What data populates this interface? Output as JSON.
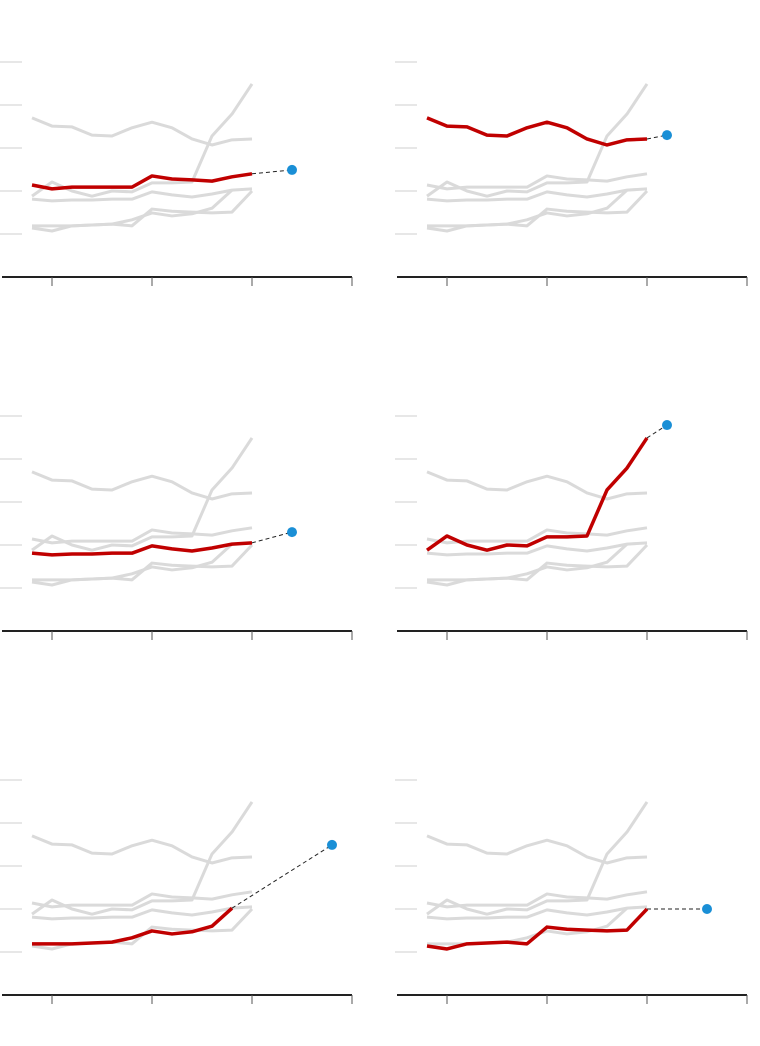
{
  "chart_data": [
    {
      "type": "line",
      "x": [
        0,
        1,
        2,
        3,
        4,
        5,
        6,
        7,
        8,
        9,
        10,
        11
      ],
      "xlim": [
        -1.5,
        16
      ],
      "xticks": [
        1,
        6,
        11,
        16
      ],
      "ylim": [
        0,
        5.5
      ],
      "yticks": [
        1,
        2,
        3,
        4,
        5
      ],
      "series": [
        {
          "color": "#dadada",
          "values": [
            3.7,
            3.51,
            3.49,
            3.3,
            3.28,
            3.47,
            3.6,
            3.47,
            3.21,
            3.07,
            3.19,
            3.21
          ]
        },
        {
          "color": "#dadada",
          "values": [
            1.81,
            1.77,
            1.79,
            1.79,
            1.81,
            1.81,
            1.98,
            1.91,
            1.86,
            1.93,
            2.02,
            2.05
          ]
        },
        {
          "color": "#dadada",
          "values": [
            1.88,
            2.21,
            2.0,
            1.88,
            2.0,
            1.98,
            2.19,
            2.19,
            2.21,
            3.28,
            3.79,
            4.49
          ]
        },
        {
          "color": "#dadada",
          "values": [
            1.19,
            1.19,
            1.19,
            1.21,
            1.23,
            1.33,
            1.49,
            1.42,
            1.47,
            1.6,
            2.02,
            null
          ]
        },
        {
          "color": "#dadada",
          "values": [
            1.14,
            1.07,
            1.19,
            1.21,
            1.23,
            1.19,
            1.58,
            1.53,
            1.51,
            1.49,
            1.51,
            2.0
          ]
        },
        {
          "color": "#c00000",
          "values": [
            2.14,
            2.05,
            2.09,
            2.09,
            2.09,
            2.09,
            2.35,
            2.28,
            2.26,
            2.23,
            2.33,
            2.4
          ]
        }
      ],
      "projection": {
        "x": 13,
        "value": 2.49,
        "color": "#1a8fd6"
      }
    },
    {
      "type": "line",
      "x": [
        0,
        1,
        2,
        3,
        4,
        5,
        6,
        7,
        8,
        9,
        10,
        11
      ],
      "xlim": [
        -1.5,
        16
      ],
      "xticks": [
        1,
        6,
        11,
        16
      ],
      "ylim": [
        0,
        5.5
      ],
      "yticks": [
        1,
        2,
        3,
        4,
        5
      ],
      "series": [
        {
          "color": "#dadada",
          "values": [
            2.14,
            2.05,
            2.09,
            2.09,
            2.09,
            2.09,
            2.35,
            2.28,
            2.26,
            2.23,
            2.33,
            2.4
          ]
        },
        {
          "color": "#dadada",
          "values": [
            1.81,
            1.77,
            1.79,
            1.79,
            1.81,
            1.81,
            1.98,
            1.91,
            1.86,
            1.93,
            2.02,
            2.05
          ]
        },
        {
          "color": "#dadada",
          "values": [
            1.88,
            2.21,
            2.0,
            1.88,
            2.0,
            1.98,
            2.19,
            2.19,
            2.21,
            3.28,
            3.79,
            4.49
          ]
        },
        {
          "color": "#dadada",
          "values": [
            1.19,
            1.19,
            1.19,
            1.21,
            1.23,
            1.33,
            1.49,
            1.42,
            1.47,
            1.6,
            2.02,
            null
          ]
        },
        {
          "color": "#dadada",
          "values": [
            1.14,
            1.07,
            1.19,
            1.21,
            1.23,
            1.19,
            1.58,
            1.53,
            1.51,
            1.49,
            1.51,
            2.0
          ]
        },
        {
          "color": "#c00000",
          "values": [
            3.7,
            3.51,
            3.49,
            3.3,
            3.28,
            3.47,
            3.6,
            3.47,
            3.21,
            3.07,
            3.19,
            3.21
          ]
        }
      ],
      "projection": {
        "x": 12,
        "value": 3.3,
        "color": "#1a8fd6"
      }
    },
    {
      "type": "line",
      "x": [
        0,
        1,
        2,
        3,
        4,
        5,
        6,
        7,
        8,
        9,
        10,
        11
      ],
      "xlim": [
        -1.5,
        16
      ],
      "xticks": [
        1,
        6,
        11,
        16
      ],
      "ylim": [
        0,
        5.5
      ],
      "yticks": [
        1,
        2,
        3,
        4,
        5
      ],
      "series": [
        {
          "color": "#dadada",
          "values": [
            3.7,
            3.51,
            3.49,
            3.3,
            3.28,
            3.47,
            3.6,
            3.47,
            3.21,
            3.07,
            3.19,
            3.21
          ]
        },
        {
          "color": "#dadada",
          "values": [
            2.14,
            2.05,
            2.09,
            2.09,
            2.09,
            2.09,
            2.35,
            2.28,
            2.26,
            2.23,
            2.33,
            2.4
          ]
        },
        {
          "color": "#dadada",
          "values": [
            1.88,
            2.21,
            2.0,
            1.88,
            2.0,
            1.98,
            2.19,
            2.19,
            2.21,
            3.28,
            3.79,
            4.49
          ]
        },
        {
          "color": "#dadada",
          "values": [
            1.19,
            1.19,
            1.19,
            1.21,
            1.23,
            1.33,
            1.49,
            1.42,
            1.47,
            1.6,
            2.02,
            null
          ]
        },
        {
          "color": "#dadada",
          "values": [
            1.14,
            1.07,
            1.19,
            1.21,
            1.23,
            1.19,
            1.58,
            1.53,
            1.51,
            1.49,
            1.51,
            2.0
          ]
        },
        {
          "color": "#c00000",
          "values": [
            1.81,
            1.77,
            1.79,
            1.79,
            1.81,
            1.81,
            1.98,
            1.91,
            1.86,
            1.93,
            2.02,
            2.05
          ]
        }
      ],
      "projection": {
        "x": 13,
        "value": 2.3,
        "color": "#1a8fd6"
      }
    },
    {
      "type": "line",
      "x": [
        0,
        1,
        2,
        3,
        4,
        5,
        6,
        7,
        8,
        9,
        10,
        11
      ],
      "xlim": [
        -1.5,
        16
      ],
      "xticks": [
        1,
        6,
        11,
        16
      ],
      "ylim": [
        0,
        5.5
      ],
      "yticks": [
        1,
        2,
        3,
        4,
        5
      ],
      "series": [
        {
          "color": "#dadada",
          "values": [
            3.7,
            3.51,
            3.49,
            3.3,
            3.28,
            3.47,
            3.6,
            3.47,
            3.21,
            3.07,
            3.19,
            3.21
          ]
        },
        {
          "color": "#dadada",
          "values": [
            2.14,
            2.05,
            2.09,
            2.09,
            2.09,
            2.09,
            2.35,
            2.28,
            2.26,
            2.23,
            2.33,
            2.4
          ]
        },
        {
          "color": "#dadada",
          "values": [
            1.81,
            1.77,
            1.79,
            1.79,
            1.81,
            1.81,
            1.98,
            1.91,
            1.86,
            1.93,
            2.02,
            2.05
          ]
        },
        {
          "color": "#dadada",
          "values": [
            1.19,
            1.19,
            1.19,
            1.21,
            1.23,
            1.33,
            1.49,
            1.42,
            1.47,
            1.6,
            2.02,
            null
          ]
        },
        {
          "color": "#dadada",
          "values": [
            1.14,
            1.07,
            1.19,
            1.21,
            1.23,
            1.19,
            1.58,
            1.53,
            1.51,
            1.49,
            1.51,
            2.0
          ]
        },
        {
          "color": "#c00000",
          "values": [
            1.88,
            2.21,
            2.0,
            1.88,
            2.0,
            1.98,
            2.19,
            2.19,
            2.21,
            3.28,
            3.79,
            4.49
          ]
        }
      ],
      "projection": {
        "x": 12,
        "value": 4.79,
        "color": "#1a8fd6"
      }
    },
    {
      "type": "line",
      "x": [
        0,
        1,
        2,
        3,
        4,
        5,
        6,
        7,
        8,
        9,
        10,
        11
      ],
      "xlim": [
        -1.5,
        16
      ],
      "xticks": [
        1,
        6,
        11,
        16
      ],
      "ylim": [
        0,
        5.5
      ],
      "yticks": [
        1,
        2,
        3,
        4,
        5
      ],
      "series": [
        {
          "color": "#dadada",
          "values": [
            3.7,
            3.51,
            3.49,
            3.3,
            3.28,
            3.47,
            3.6,
            3.47,
            3.21,
            3.07,
            3.19,
            3.21
          ]
        },
        {
          "color": "#dadada",
          "values": [
            2.14,
            2.05,
            2.09,
            2.09,
            2.09,
            2.09,
            2.35,
            2.28,
            2.26,
            2.23,
            2.33,
            2.4
          ]
        },
        {
          "color": "#dadada",
          "values": [
            1.81,
            1.77,
            1.79,
            1.79,
            1.81,
            1.81,
            1.98,
            1.91,
            1.86,
            1.93,
            2.02,
            2.05
          ]
        },
        {
          "color": "#dadada",
          "values": [
            1.88,
            2.21,
            2.0,
            1.88,
            2.0,
            1.98,
            2.19,
            2.19,
            2.21,
            3.28,
            3.79,
            4.49
          ]
        },
        {
          "color": "#dadada",
          "values": [
            1.14,
            1.07,
            1.19,
            1.21,
            1.23,
            1.19,
            1.58,
            1.53,
            1.51,
            1.49,
            1.51,
            2.0
          ]
        },
        {
          "color": "#c00000",
          "values": [
            1.19,
            1.19,
            1.19,
            1.21,
            1.23,
            1.33,
            1.49,
            1.42,
            1.47,
            1.6,
            2.02,
            null
          ]
        }
      ],
      "projection": {
        "x": 15,
        "value": 3.49,
        "color": "#1a8fd6"
      }
    },
    {
      "type": "line",
      "x": [
        0,
        1,
        2,
        3,
        4,
        5,
        6,
        7,
        8,
        9,
        10,
        11
      ],
      "xlim": [
        -1.5,
        16
      ],
      "xticks": [
        1,
        6,
        11,
        16
      ],
      "ylim": [
        0,
        5.5
      ],
      "yticks": [
        1,
        2,
        3,
        4,
        5
      ],
      "series": [
        {
          "color": "#dadada",
          "values": [
            3.7,
            3.51,
            3.49,
            3.3,
            3.28,
            3.47,
            3.6,
            3.47,
            3.21,
            3.07,
            3.19,
            3.21
          ]
        },
        {
          "color": "#dadada",
          "values": [
            2.14,
            2.05,
            2.09,
            2.09,
            2.09,
            2.09,
            2.35,
            2.28,
            2.26,
            2.23,
            2.33,
            2.4
          ]
        },
        {
          "color": "#dadada",
          "values": [
            1.81,
            1.77,
            1.79,
            1.79,
            1.81,
            1.81,
            1.98,
            1.91,
            1.86,
            1.93,
            2.02,
            2.05
          ]
        },
        {
          "color": "#dadada",
          "values": [
            1.88,
            2.21,
            2.0,
            1.88,
            2.0,
            1.98,
            2.19,
            2.19,
            2.21,
            3.28,
            3.79,
            4.49
          ]
        },
        {
          "color": "#dadada",
          "values": [
            1.19,
            1.19,
            1.19,
            1.21,
            1.23,
            1.33,
            1.49,
            1.42,
            1.47,
            1.6,
            2.02,
            null
          ]
        },
        {
          "color": "#c00000",
          "values": [
            1.14,
            1.07,
            1.19,
            1.21,
            1.23,
            1.19,
            1.58,
            1.53,
            1.51,
            1.49,
            1.51,
            2.0
          ]
        }
      ],
      "projection": {
        "x": 14,
        "value": 2.0,
        "color": "#1a8fd6"
      }
    }
  ]
}
